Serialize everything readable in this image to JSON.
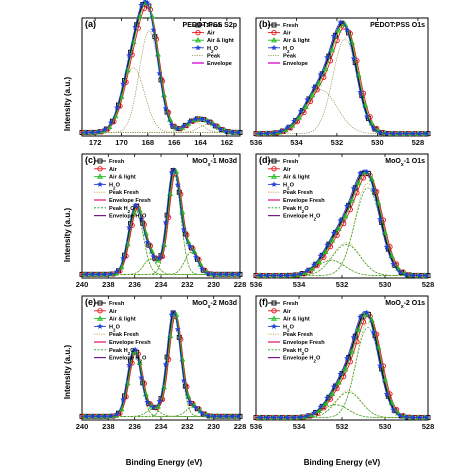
{
  "figure": {
    "xlabel": "Binding Energy (eV)",
    "ylabel": "Intensity (a.u.)"
  },
  "colors": {
    "fresh": "#000000",
    "air": "#e8141c",
    "air_light": "#22bb22",
    "h2o": "#1f3fd6",
    "peak": "#8a8a40",
    "envelope": "#d400d4",
    "peak_fresh": "#c8a040",
    "envelope_fresh": "#e0106a",
    "peak_h2o": "#18a018",
    "envelope_h2o": "#7a1a8a"
  },
  "chart_data": [
    {
      "type": "line",
      "panel": "(a)",
      "title": "PEDOT:PSS S2p",
      "xlim": [
        173,
        161
      ],
      "xticks": [
        172,
        170,
        168,
        166,
        164,
        162
      ],
      "legend": [
        "Fresh",
        "Air",
        "Air & light",
        "H2O",
        "Peak",
        "Envelope"
      ],
      "legend_position": "top-right",
      "components": [
        {
          "center": 169.1,
          "height": 0.56,
          "width": 0.85
        },
        {
          "center": 167.9,
          "height": 0.88,
          "width": 0.75
        },
        {
          "center": 164.5,
          "height": 0.09,
          "width": 0.7
        },
        {
          "center": 163.4,
          "height": 0.07,
          "width": 0.7
        }
      ],
      "baseline": 0.03
    },
    {
      "type": "line",
      "panel": "(b)",
      "title": "PEDOT:PSS O1s",
      "xlim": [
        536,
        527.5
      ],
      "xticks": [
        536,
        534,
        532,
        530,
        528
      ],
      "legend": [
        "Fresh",
        "Air",
        "Air & light",
        "H2O",
        "Peak",
        "Envelope"
      ],
      "legend_position": "top-left",
      "components": [
        {
          "center": 532.8,
          "height": 0.38,
          "width": 0.8
        },
        {
          "center": 531.6,
          "height": 0.82,
          "width": 0.6
        }
      ],
      "baseline": 0.02
    },
    {
      "type": "line",
      "panel": "(c)",
      "title": "MoOx-1 Mo3d",
      "xlim": [
        240,
        228
      ],
      "xticks": [
        240,
        238,
        236,
        234,
        232,
        230,
        228
      ],
      "legend": [
        "Fresh",
        "Air",
        "Air & light",
        "H2O",
        "Peak Fresh",
        "Envelope Fresh",
        "Peak H2O",
        "Envelope H2O"
      ],
      "legend_position": "top-left",
      "components": [
        {
          "center": 235.9,
          "height": 0.55,
          "width": 0.55
        },
        {
          "center": 234.8,
          "height": 0.13,
          "width": 0.5
        },
        {
          "center": 233.0,
          "height": 0.86,
          "width": 0.5
        },
        {
          "center": 231.7,
          "height": 0.19,
          "width": 0.5
        }
      ],
      "baseline": 0.03
    },
    {
      "type": "line",
      "panel": "(d)",
      "title": "MoOx-1 O1s",
      "xlim": [
        536,
        528
      ],
      "xticks": [
        536,
        534,
        532,
        530,
        528
      ],
      "legend": [
        "Fresh",
        "Air",
        "Air & light",
        "H2O",
        "Peak Fresh",
        "Envelope Fresh",
        "Peak H2O",
        "Envelope H2O"
      ],
      "legend_position": "top-left",
      "components": [
        {
          "center": 532.5,
          "height": 0.13,
          "width": 0.65
        },
        {
          "center": 531.8,
          "height": 0.27,
          "width": 0.65
        },
        {
          "center": 530.8,
          "height": 0.76,
          "width": 0.6
        }
      ],
      "baseline": 0.02
    },
    {
      "type": "line",
      "panel": "(e)",
      "title": "MoOx-2 Mo3d",
      "xlim": [
        240,
        228
      ],
      "xticks": [
        240,
        238,
        236,
        234,
        232,
        230,
        228
      ],
      "legend": [
        "Fresh",
        "Air",
        "Air & light",
        "H2O",
        "Peak Fresh",
        "Envelope Fresh",
        "Peak H2O",
        "Envelope H2O"
      ],
      "legend_position": "top-left",
      "components": [
        {
          "center": 236.0,
          "height": 0.55,
          "width": 0.5
        },
        {
          "center": 234.6,
          "height": 0.06,
          "width": 0.5
        },
        {
          "center": 233.0,
          "height": 0.86,
          "width": 0.5
        },
        {
          "center": 231.6,
          "height": 0.08,
          "width": 0.5
        }
      ],
      "baseline": 0.03
    },
    {
      "type": "line",
      "panel": "(f)",
      "title": "MoOx-2 O1s",
      "xlim": [
        536,
        528
      ],
      "xticks": [
        536,
        534,
        532,
        530,
        528
      ],
      "legend": [
        "Fresh",
        "Air",
        "Air & light",
        "H2O",
        "Peak Fresh",
        "Envelope Fresh",
        "Peak H2O",
        "Envelope H2O"
      ],
      "legend_position": "top-left",
      "components": [
        {
          "center": 532.3,
          "height": 0.11,
          "width": 0.6
        },
        {
          "center": 531.7,
          "height": 0.22,
          "width": 0.6
        },
        {
          "center": 530.8,
          "height": 0.78,
          "width": 0.55
        }
      ],
      "baseline": 0.02
    }
  ]
}
